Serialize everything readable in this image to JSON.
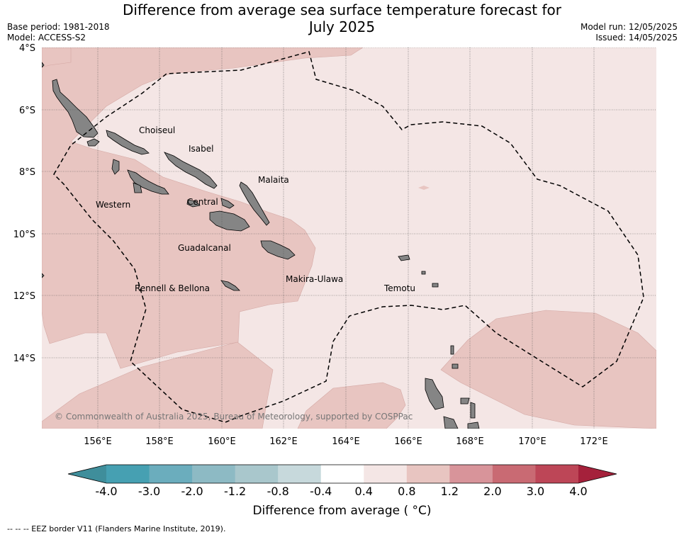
{
  "title_line1": "Difference from average sea surface temperature forecast for",
  "title_line2": "July 2025",
  "base_period": "Base period: 1981-2018",
  "model": "Model: ACCESS-S2",
  "model_run": "Model run: 12/05/2025",
  "issued": "Issued: 14/05/2025",
  "copyright": "© Commonwealth of Australia 2025, Bureau of Meteorology, supported by COSPPac",
  "lat_ticks": [
    "4°S",
    "6°S",
    "8°S",
    "10°S",
    "12°S",
    "14°S"
  ],
  "lon_ticks": [
    "156°E",
    "158°E",
    "160°E",
    "162°E",
    "164°E",
    "166°E",
    "168°E",
    "170°E",
    "172°E"
  ],
  "regions": [
    {
      "name": "Choiseul"
    },
    {
      "name": "Isabel"
    },
    {
      "name": "Malaita"
    },
    {
      "name": "Western"
    },
    {
      "name": "Central"
    },
    {
      "name": "Guadalcanal"
    },
    {
      "name": "Makira-Ulawa"
    },
    {
      "name": "Rennell & Bellona"
    },
    {
      "name": "Temotu"
    }
  ],
  "colorbar": {
    "title": "Difference from average ( °C)",
    "ticks": [
      "-4.0",
      "-3.0",
      "-2.0",
      "-1.2",
      "-0.8",
      "-0.4",
      "0.4",
      "0.8",
      "1.2",
      "2.0",
      "3.0",
      "4.0"
    ],
    "colors": [
      "#3f8e9b",
      "#46a0b2",
      "#6badbd",
      "#8dbac4",
      "#a9c7cc",
      "#c7d9dc",
      "#ffffff",
      "#f4e6e5",
      "#e8c5c1",
      "#d8949a",
      "#c96a73",
      "#bd4657",
      "#a5213b"
    ]
  },
  "footnote": "-- -- -- EEZ border V11 (Flanders Marine Institute, 2019).",
  "colors": {
    "base_anomaly": "#f4e6e5",
    "warm_anomaly": "#e8c5c1",
    "land": "#858585",
    "eez": "#000000"
  }
}
